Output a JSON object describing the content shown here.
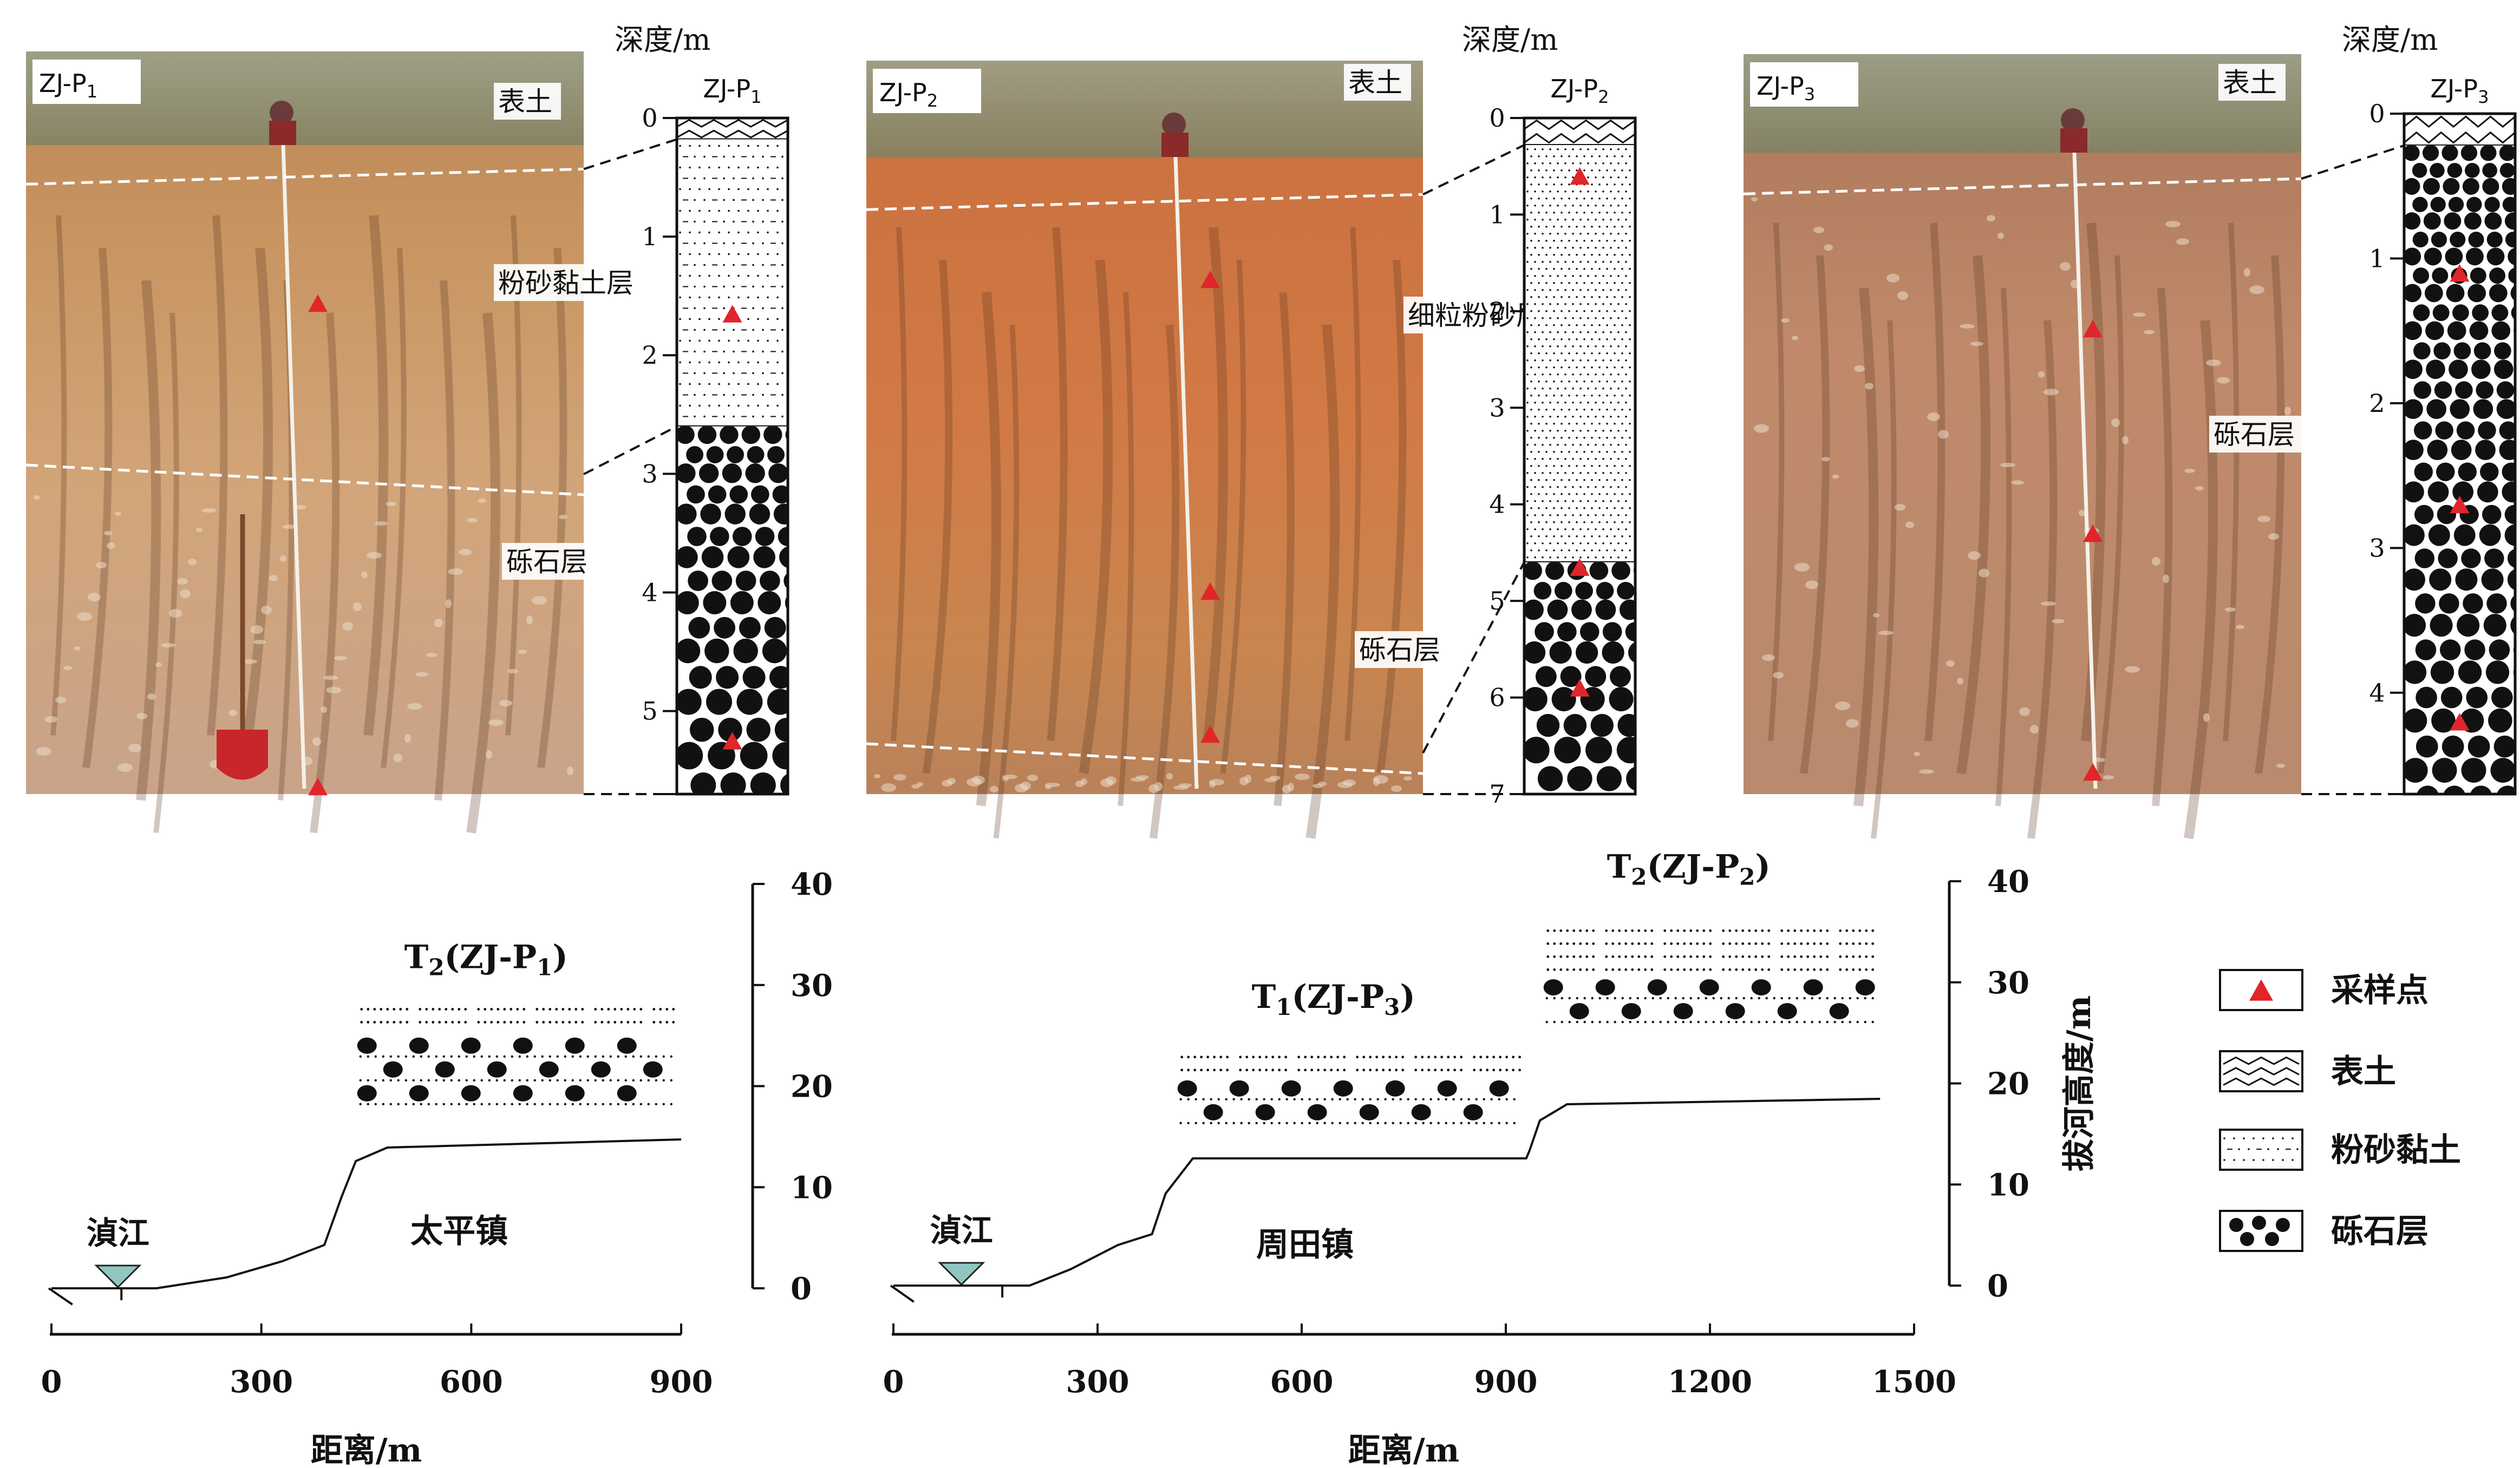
{
  "profiles": [
    {
      "photo_label": "ZJ-P1",
      "photo_label_main": "ZJ-P",
      "photo_label_sub": "1",
      "column_title_main": "ZJ-P",
      "column_title_sub": "1",
      "depth_header": "深度/m",
      "depth_max": 5.7,
      "ticks": [
        "0",
        "1",
        "2",
        "3",
        "4",
        "5"
      ],
      "units": [
        {
          "name": "topsoil",
          "top": 0,
          "bottom": 0.18
        },
        {
          "name": "silt-clay",
          "top": 0.18,
          "bottom": 2.6
        },
        {
          "name": "gravel",
          "top": 2.6,
          "bottom": 5.7
        }
      ],
      "samples": [
        1.65,
        5.25
      ],
      "photo_samples": [
        {
          "depth": 1.2
        },
        {
          "depth": 5.0
        }
      ],
      "photo_labels": [
        {
          "text": "表土",
          "name": "label-topsoil"
        },
        {
          "text": "粉砂黏土层",
          "name": "label-silt-clay"
        },
        {
          "text": "砾石层",
          "name": "label-gravel"
        }
      ],
      "boundaries": [
        0.18,
        2.6
      ]
    },
    {
      "photo_label": "ZJ-P2",
      "photo_label_main": "ZJ-P",
      "photo_label_sub": "2",
      "column_title_main": "ZJ-P",
      "column_title_sub": "2",
      "depth_header": "深度/m",
      "depth_max": 7,
      "ticks": [
        "0",
        "1",
        "2",
        "3",
        "4",
        "5",
        "6",
        "7"
      ],
      "units": [
        {
          "name": "topsoil",
          "top": 0,
          "bottom": 0.28
        },
        {
          "name": "silt",
          "top": 0.28,
          "bottom": 4.6
        },
        {
          "name": "gravel",
          "top": 4.6,
          "bottom": 7
        }
      ],
      "samples": [
        0.6,
        4.65,
        5.9
      ],
      "photo_samples": [
        {
          "depth": 0.9
        },
        {
          "depth": 3.3
        },
        {
          "depth": 4.4
        }
      ],
      "photo_labels": [
        {
          "text": "表土",
          "name": "label-topsoil"
        },
        {
          "text": "细粒粉砂层",
          "name": "label-fine-silt"
        },
        {
          "text": "砾石层",
          "name": "label-gravel"
        }
      ],
      "boundaries": [
        0.28,
        4.6
      ]
    },
    {
      "photo_label": "ZJ-P3",
      "photo_label_main": "ZJ-P",
      "photo_label_sub": "3",
      "column_title_main": "ZJ-P",
      "column_title_sub": "3",
      "depth_header": "深度/m",
      "depth_max": 4.7,
      "ticks": [
        "0",
        "1",
        "2",
        "3",
        "4"
      ],
      "units": [
        {
          "name": "topsoil",
          "top": 0,
          "bottom": 0.22
        },
        {
          "name": "gravel",
          "top": 0.22,
          "bottom": 4.7
        }
      ],
      "samples": [
        1.1,
        2.7,
        4.2
      ],
      "photo_samples": [
        {
          "depth": 1.5
        },
        {
          "depth": 3.3
        },
        {
          "depth": 5.4
        }
      ],
      "photo_labels": [
        {
          "text": "表土",
          "name": "label-topsoil"
        },
        {
          "text": "砾石层",
          "name": "label-gravel"
        }
      ],
      "boundaries": [
        0.22
      ]
    }
  ],
  "sections": [
    {
      "name": "taiping",
      "town": "太平镇",
      "river": "湞江",
      "xlabel": "距离/m",
      "xticks": [
        "0",
        "300",
        "600",
        "900"
      ],
      "xmax": 900,
      "yticks": [
        "0",
        "10",
        "20",
        "30",
        "40"
      ],
      "ymax": 40,
      "terraces": [
        {
          "main": "T",
          "sub": "2",
          "rest": "(ZJ-P",
          "sub2": "1",
          "end": ")",
          "x_start": 420,
          "x_end": 900,
          "top": 29,
          "bottom": 19.5,
          "silt_bottom": 25.5
        }
      ]
    },
    {
      "name": "zhoutian",
      "town": "周田镇",
      "river": "湞江",
      "xlabel": "距离/m",
      "xticks": [
        "0",
        "300",
        "600",
        "900",
        "1200",
        "1500"
      ],
      "xmax": 1500,
      "yticks": [
        "0",
        "10",
        "20",
        "30",
        "40"
      ],
      "ymax": 40,
      "ylabel": "拔河高度/m",
      "terraces": [
        {
          "main": "T",
          "sub": "1",
          "rest": "(ZJ-P",
          "sub2": "3",
          "end": ")",
          "x_start": 400,
          "x_end": 930,
          "top": 24,
          "bottom": 16,
          "silt_bottom": 21
        },
        {
          "main": "T",
          "sub": "2",
          "rest": "(ZJ-P",
          "sub2": "2",
          "end": ")",
          "x_start": 930,
          "x_end": 1450,
          "top": 36.5,
          "bottom": 25.5,
          "silt_bottom": 31
        }
      ]
    }
  ],
  "legend": [
    {
      "key": "sample",
      "label": "采样点"
    },
    {
      "key": "topsoil",
      "label": "表土"
    },
    {
      "key": "silt",
      "label": "粉砂黏土"
    },
    {
      "key": "gravel",
      "label": "砾石层"
    }
  ],
  "colors": {
    "sample_red": "#e0262a",
    "river_teal": "#8fc7c0",
    "photo1": "#c98f5a",
    "photo2": "#c96a3c",
    "photo3": "#b98262"
  }
}
